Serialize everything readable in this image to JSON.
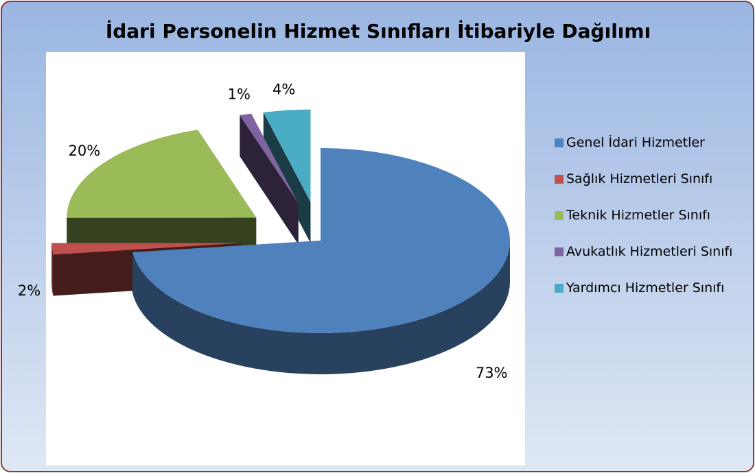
{
  "chart_data": {
    "type": "pie",
    "title": "İdari Personelin Hizmet Sınıfları İtibariyle Dağılımı",
    "categories": [
      "Genel İdari Hizmetler",
      "Sağlık Hizmetleri Sınıfı",
      "Teknik Hizmetler Sınıfı",
      "Avukatlık Hizmetleri Sınıfı",
      "Yardımcı Hizmetler Sınıfı"
    ],
    "values": [
      73,
      2,
      20,
      1,
      4
    ],
    "value_labels": [
      "73%",
      "2%",
      "20%",
      "1%",
      "4%"
    ],
    "colors": [
      "#4f81bd",
      "#c0504d",
      "#9bbb59",
      "#8064a2",
      "#4bacc6"
    ],
    "legend": "right"
  }
}
